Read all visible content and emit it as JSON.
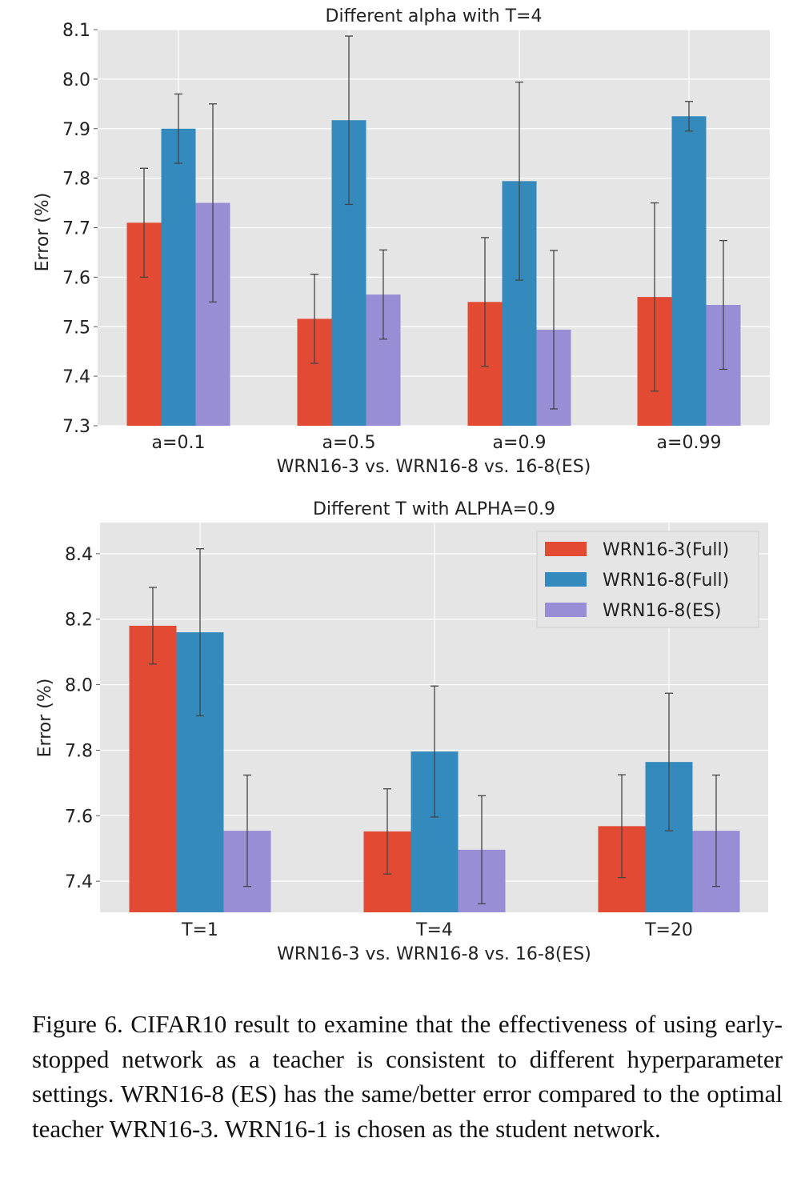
{
  "chart_data": [
    {
      "type": "bar",
      "title": "Different alpha with T=4",
      "xlabel": "WRN16-3 vs. WRN16-8 vs. 16-8(ES)",
      "ylabel": "Error (%)",
      "ylim": [
        7.3,
        8.1
      ],
      "yticks": [
        "7.3",
        "7.4",
        "7.5",
        "7.6",
        "7.7",
        "7.8",
        "7.9",
        "8.0",
        "8.1"
      ],
      "categories": [
        "a=0.1",
        "a=0.5",
        "a=0.9",
        "a=0.99"
      ],
      "grid": true,
      "series": [
        {
          "name": "WRN16-3(Full)",
          "values": [
            7.71,
            7.516,
            7.55,
            7.56
          ],
          "errors": [
            0.11,
            0.09,
            0.13,
            0.19
          ]
        },
        {
          "name": "WRN16-8(Full)",
          "values": [
            7.9,
            7.917,
            7.794,
            7.925
          ],
          "errors": [
            0.07,
            0.17,
            0.2,
            0.03
          ]
        },
        {
          "name": "WRN16-8(ES)",
          "values": [
            7.75,
            7.565,
            7.494,
            7.544
          ],
          "errors": [
            0.2,
            0.09,
            0.16,
            0.13
          ]
        }
      ]
    },
    {
      "type": "bar",
      "title": "Different T with ALPHA=0.9",
      "xlabel": "WRN16-3 vs. WRN16-8 vs. 16-8(ES)",
      "ylabel": "Error (%)",
      "ylim": [
        7.305,
        8.495
      ],
      "yticks": [
        "7.4",
        "7.6",
        "7.8",
        "8.0",
        "8.2",
        "8.4"
      ],
      "categories": [
        "T=1",
        "T=4",
        "T=20"
      ],
      "grid": true,
      "legend": "top-right",
      "series": [
        {
          "name": "WRN16-3(Full)",
          "values": [
            8.18,
            7.552,
            7.568
          ],
          "errors": [
            0.117,
            0.13,
            0.157
          ]
        },
        {
          "name": "WRN16-8(Full)",
          "values": [
            8.16,
            7.796,
            7.764
          ],
          "errors": [
            0.255,
            0.2,
            0.21
          ]
        },
        {
          "name": "WRN16-8(ES)",
          "values": [
            7.554,
            7.496,
            7.554
          ],
          "errors": [
            0.17,
            0.165,
            0.17
          ]
        }
      ]
    }
  ],
  "colors": [
    "#E24A33",
    "#348ABD",
    "#988ED5"
  ],
  "caption": "Figure 6.   CIFAR10 result to examine that the effectiveness of using early-stopped network as a teacher is consistent to different hyperparameter settings. WRN16-8 (ES) has the same/better error compared to the optimal teacher WRN16-3. WRN16-1 is chosen as the student network."
}
